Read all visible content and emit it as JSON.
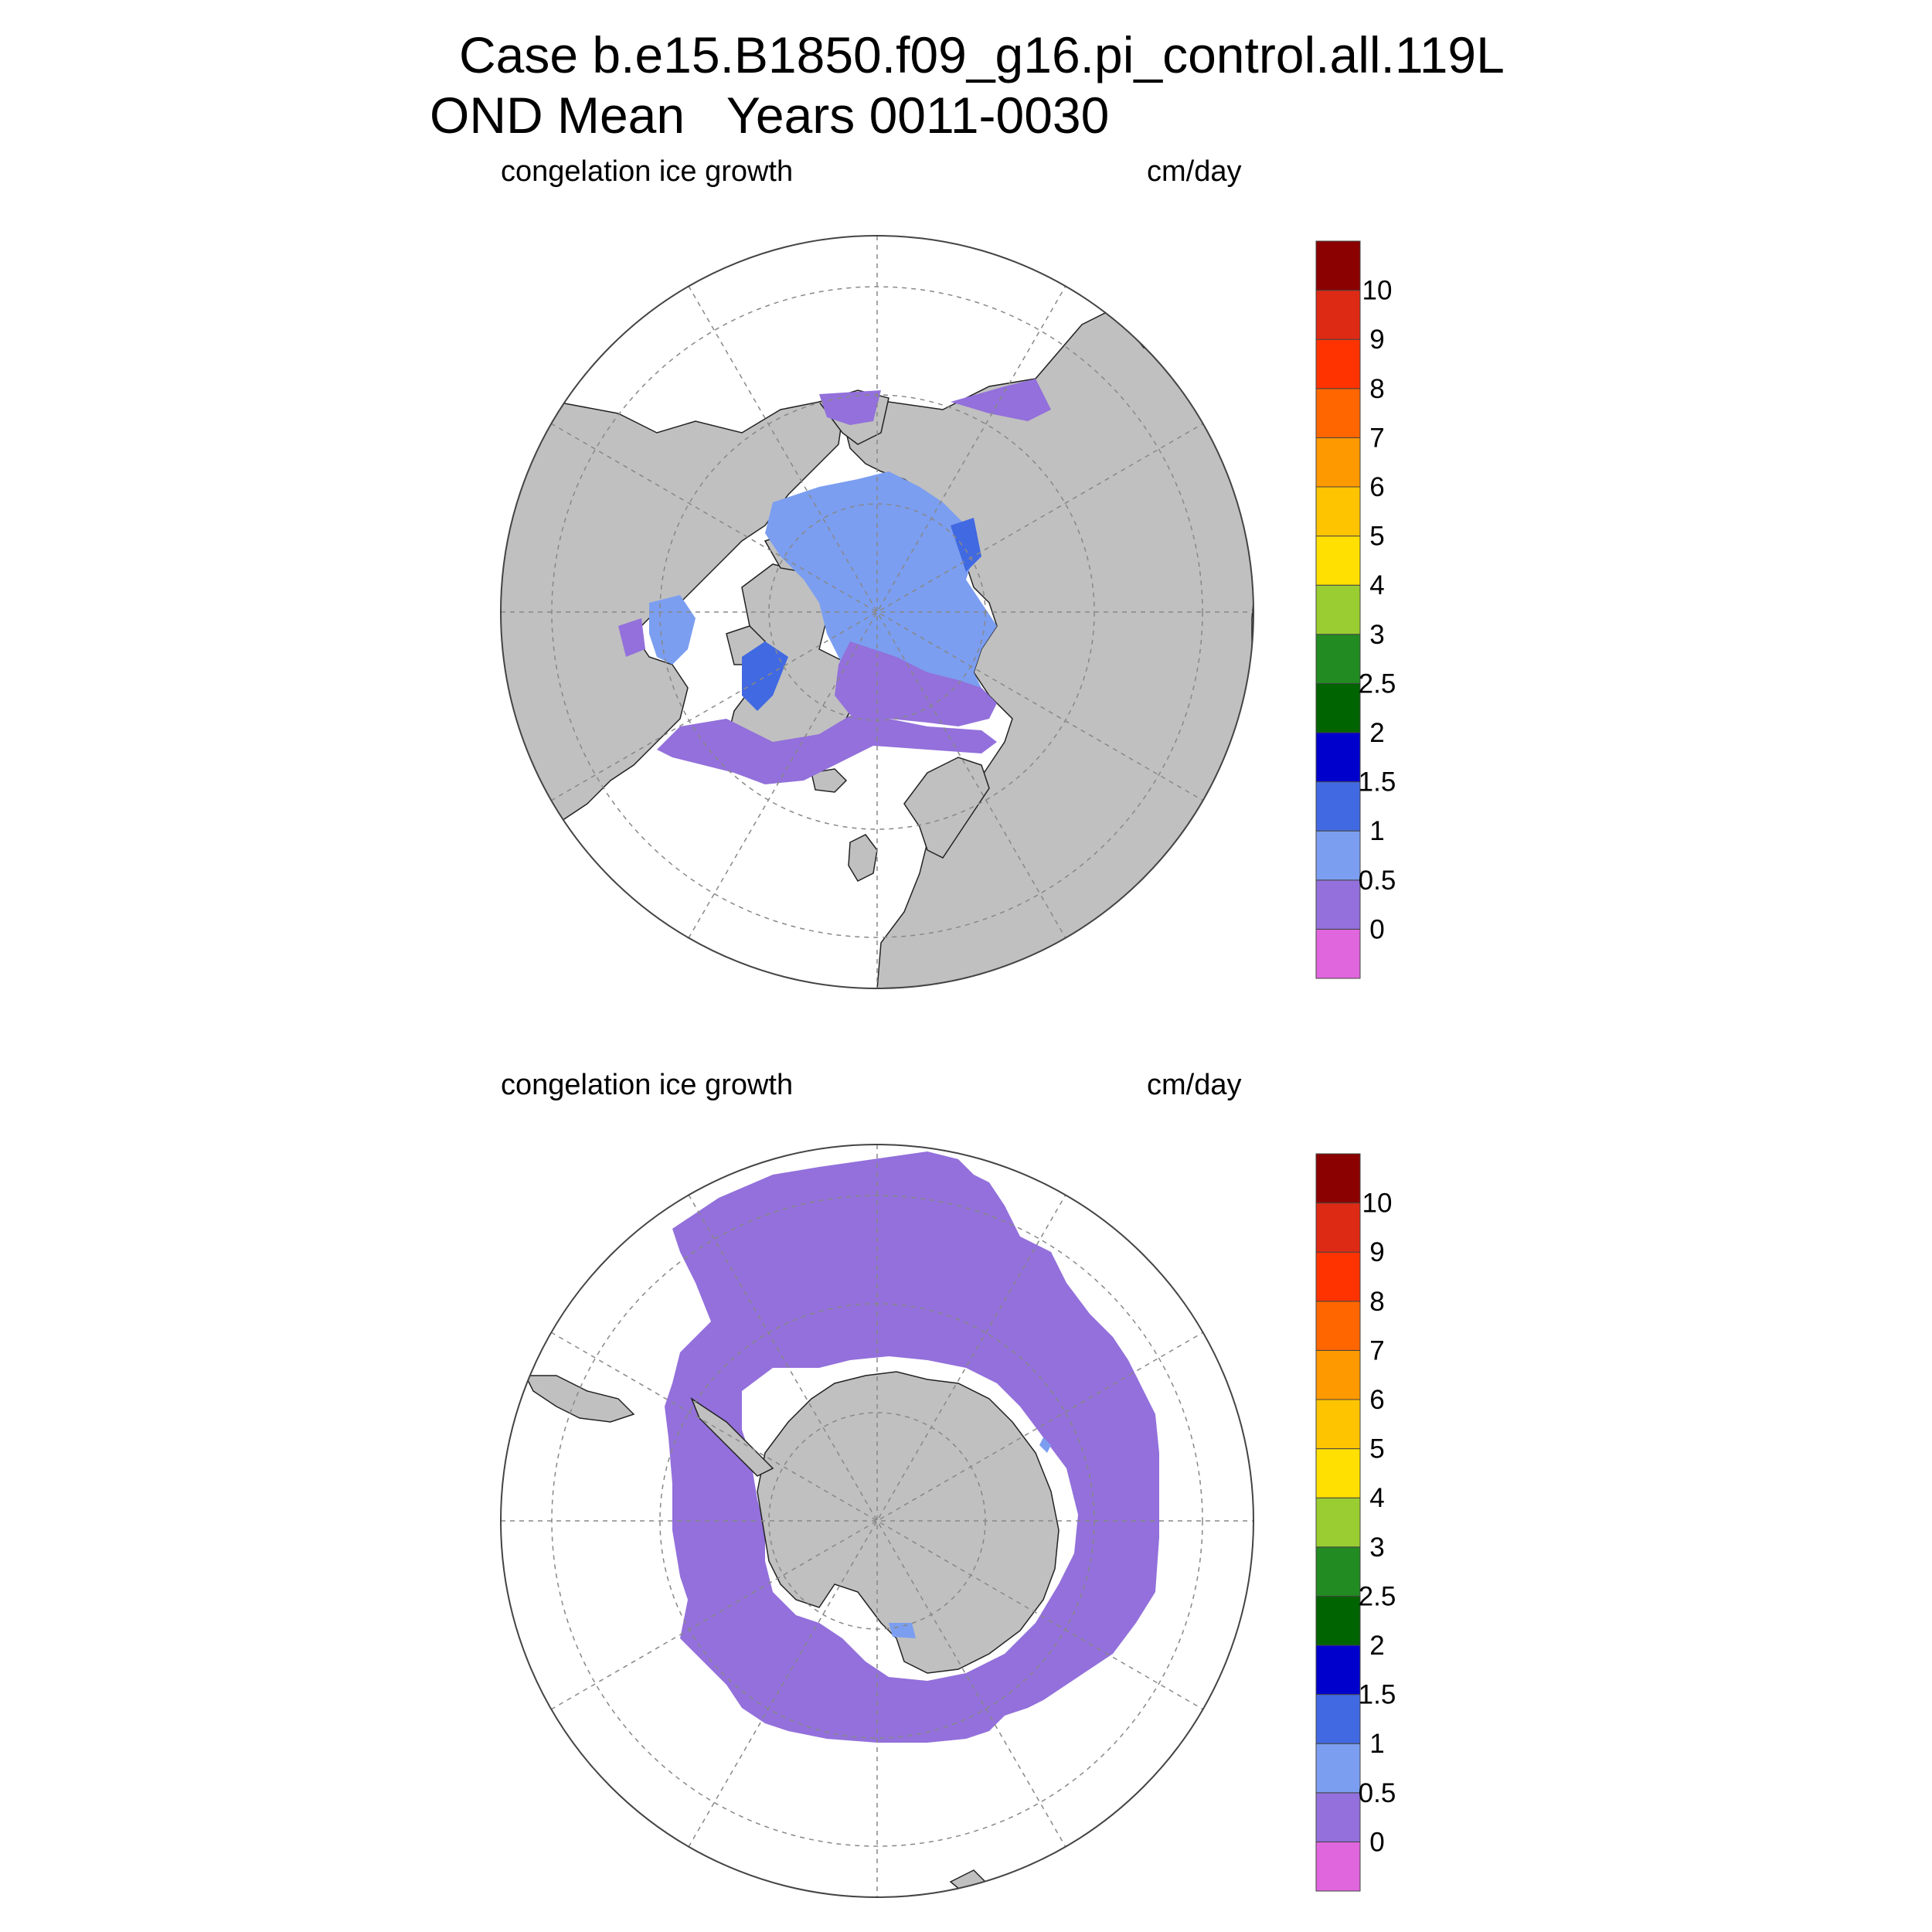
{
  "header": {
    "title_line1": "Case b.e15.B1850.f09_g16.pi_control.all.119L",
    "title_line2": "OND Mean   Years 0011-0030"
  },
  "panels": [
    {
      "id": "north",
      "left_label": "congelation ice growth",
      "right_label": "cm/day",
      "hemisphere": "arctic"
    },
    {
      "id": "south",
      "left_label": "congelation ice growth",
      "right_label": "cm/day",
      "hemisphere": "antarctic"
    }
  ],
  "colorbar": {
    "levels": [
      "0",
      "0.5",
      "1",
      "1.5",
      "2",
      "2.5",
      "3",
      "4",
      "5",
      "6",
      "7",
      "8",
      "9",
      "10"
    ],
    "colors": [
      "#e066dd",
      "#9370db",
      "#7b9ef0",
      "#4169e1",
      "#0000cd",
      "#006400",
      "#228b22",
      "#9acd32",
      "#ffe000",
      "#ffc400",
      "#ff9900",
      "#ff6600",
      "#ff3300",
      "#dd2a14",
      "#8b0000"
    ]
  },
  "map_colors": {
    "land": "#c0c0c0",
    "ocean": "#ffffff",
    "grid": "#888888"
  }
}
